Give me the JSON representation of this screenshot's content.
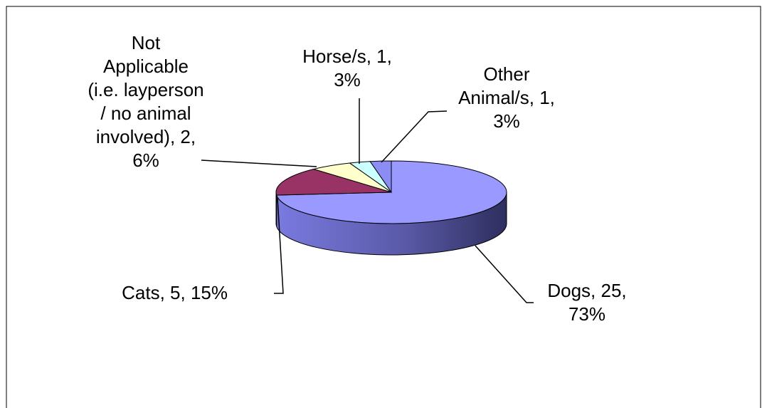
{
  "chart_data": {
    "type": "pie",
    "values": [
      25,
      5,
      2,
      1,
      1
    ],
    "value_labels": [
      "Dogs, 25,\n73%",
      "Cats, 5, 15%",
      "Not\nApplicable\n(i.e. layperson\n/ no animal\ninvolved),  2,\n6%",
      "Horse/s, 1,\n3%",
      "Other\nAnimal/s,  1,\n3%"
    ],
    "colors": [
      "#9999ff",
      "#993366",
      "#ffffcc",
      "#ccffff",
      "#8c8cf5"
    ]
  }
}
